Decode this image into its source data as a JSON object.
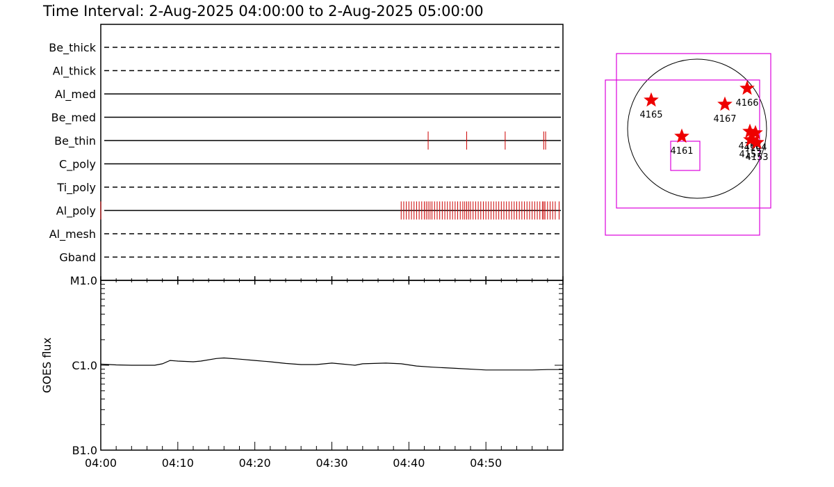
{
  "title": "Time Interval:  2-Aug-2025 04:00:00 to  2-Aug-2025 05:00:00",
  "chart_data": [
    {
      "type": "timeline",
      "x_range": [
        "04:00",
        "05:00"
      ],
      "rows": [
        {
          "label": "Be_thick",
          "style": "dashed",
          "events": []
        },
        {
          "label": "Al_thick",
          "style": "dashed",
          "events": []
        },
        {
          "label": "Al_med",
          "style": "solid",
          "events": []
        },
        {
          "label": "Be_med",
          "style": "solid",
          "events": []
        },
        {
          "label": "Be_thin",
          "style": "solid",
          "events": [
            "04:42:30",
            "04:47:30",
            "04:52:30",
            "04:57:30",
            "04:57:45"
          ]
        },
        {
          "label": "C_poly",
          "style": "solid",
          "events": []
        },
        {
          "label": "Ti_poly",
          "style": "dashed",
          "events": []
        },
        {
          "label": "Al_poly",
          "style": "solid",
          "events": [
            "04:00:00",
            "04:39:00",
            "04:39:20",
            "04:39:40",
            "04:40:00",
            "04:40:20",
            "04:40:40",
            "04:41:00",
            "04:41:20",
            "04:41:40",
            "04:42:00",
            "04:42:15",
            "04:42:30",
            "04:42:45",
            "04:43:00",
            "04:43:20",
            "04:43:40",
            "04:44:00",
            "04:44:20",
            "04:44:40",
            "04:45:00",
            "04:45:20",
            "04:45:40",
            "04:46:00",
            "04:46:20",
            "04:46:40",
            "04:47:00",
            "04:47:15",
            "04:47:30",
            "04:47:45",
            "04:48:00",
            "04:48:20",
            "04:48:40",
            "04:49:00",
            "04:49:20",
            "04:49:40",
            "04:50:00",
            "04:50:20",
            "04:50:40",
            "04:51:00",
            "04:51:20",
            "04:51:40",
            "04:52:00",
            "04:52:20",
            "04:52:40",
            "04:53:00",
            "04:53:20",
            "04:53:40",
            "04:54:00",
            "04:54:20",
            "04:54:40",
            "04:55:00",
            "04:55:20",
            "04:55:40",
            "04:56:00",
            "04:56:20",
            "04:56:40",
            "04:57:00",
            "04:57:20",
            "04:57:30",
            "04:57:40",
            "04:58:00",
            "04:58:20",
            "04:58:40",
            "04:59:00",
            "04:59:30"
          ]
        },
        {
          "label": "Al_mesh",
          "style": "dashed",
          "events": []
        },
        {
          "label": "Gband",
          "style": "dashed",
          "events": []
        }
      ],
      "colors": {
        "events": "#cc0000",
        "lines": "#000000"
      }
    },
    {
      "type": "line",
      "ylabel": "GOES flux",
      "y_scale": "log",
      "y_ticks": [
        {
          "label": "B1.0",
          "value": 1e-07
        },
        {
          "label": "C1.0",
          "value": 1e-06
        },
        {
          "label": "M1.0",
          "value": 1e-05
        }
      ],
      "ylim": [
        1e-07,
        1e-05
      ],
      "x_ticks": [
        "04:00",
        "04:10",
        "04:20",
        "04:30",
        "04:40",
        "04:50"
      ],
      "x_range": [
        "04:00",
        "05:00"
      ],
      "series": [
        {
          "values": [
            {
              "x": "04:00",
              "y": 1.03e-06
            },
            {
              "x": "04:02",
              "y": 1.01e-06
            },
            {
              "x": "04:04",
              "y": 1e-06
            },
            {
              "x": "04:06",
              "y": 1e-06
            },
            {
              "x": "04:07",
              "y": 1e-06
            },
            {
              "x": "04:08",
              "y": 1.04e-06
            },
            {
              "x": "04:09",
              "y": 1.14e-06
            },
            {
              "x": "04:10",
              "y": 1.12e-06
            },
            {
              "x": "04:12",
              "y": 1.1e-06
            },
            {
              "x": "04:13",
              "y": 1.12e-06
            },
            {
              "x": "04:15",
              "y": 1.2e-06
            },
            {
              "x": "04:16",
              "y": 1.22e-06
            },
            {
              "x": "04:18",
              "y": 1.18e-06
            },
            {
              "x": "04:20",
              "y": 1.14e-06
            },
            {
              "x": "04:22",
              "y": 1.1e-06
            },
            {
              "x": "04:24",
              "y": 1.05e-06
            },
            {
              "x": "04:26",
              "y": 1.02e-06
            },
            {
              "x": "04:28",
              "y": 1.02e-06
            },
            {
              "x": "04:30",
              "y": 1.06e-06
            },
            {
              "x": "04:31",
              "y": 1.04e-06
            },
            {
              "x": "04:33",
              "y": 1e-06
            },
            {
              "x": "04:34",
              "y": 1.04e-06
            },
            {
              "x": "04:37",
              "y": 1.06e-06
            },
            {
              "x": "04:39",
              "y": 1.04e-06
            },
            {
              "x": "04:41",
              "y": 9.8e-07
            },
            {
              "x": "04:43",
              "y": 9.5e-07
            },
            {
              "x": "04:46",
              "y": 9.2e-07
            },
            {
              "x": "04:49",
              "y": 8.9e-07
            },
            {
              "x": "04:50",
              "y": 8.8e-07
            },
            {
              "x": "04:53",
              "y": 8.8e-07
            },
            {
              "x": "04:56",
              "y": 8.8e-07
            },
            {
              "x": "04:58",
              "y": 8.9e-07
            },
            {
              "x": "05:00",
              "y": 8.9e-07
            }
          ]
        }
      ]
    },
    {
      "type": "scatter",
      "description_units": "solar disk map",
      "colors": {
        "disk": "#000000",
        "boxes": "#dd00dd",
        "stars": "#ee0000"
      },
      "regions": [
        {
          "label": "4165",
          "x": -0.66,
          "y": 0.41
        },
        {
          "label": "4161",
          "x": -0.22,
          "y": -0.11
        },
        {
          "label": "4167",
          "x": 0.4,
          "y": 0.35
        },
        {
          "label": "4166",
          "x": 0.72,
          "y": 0.58
        },
        {
          "label": "4168",
          "x": 0.76,
          "y": -0.04
        },
        {
          "label": "4164",
          "x": 0.84,
          "y": -0.06
        },
        {
          "label": "4157",
          "x": 0.77,
          "y": -0.16
        },
        {
          "label": "4153",
          "x": 0.86,
          "y": -0.2
        }
      ]
    }
  ]
}
